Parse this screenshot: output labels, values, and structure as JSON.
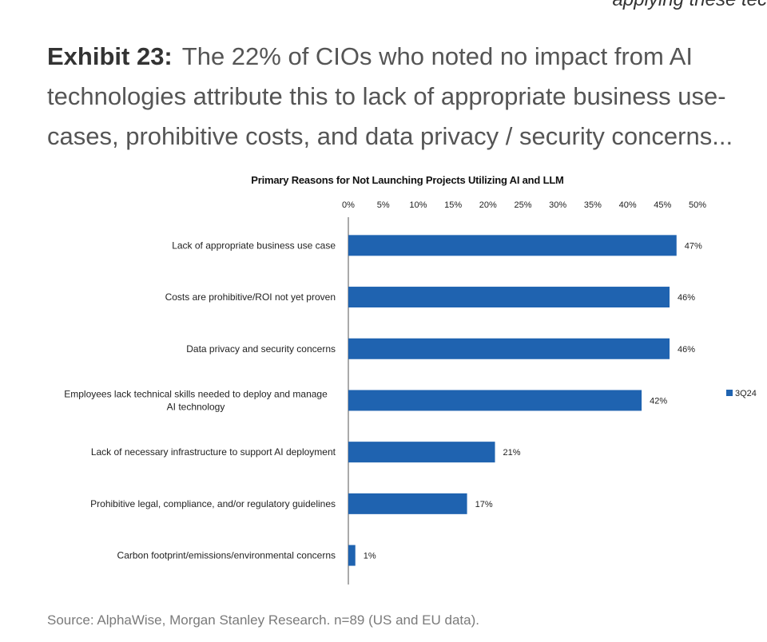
{
  "page": {
    "top_snippet": "applying these tec",
    "exhibit_label": "Exhibit 23:",
    "exhibit_title": "The 22% of CIOs who noted no impact from AI technologies attribute this to lack of appropriate business use-cases, prohibitive costs, and data privacy / security concerns...",
    "source": "Source: AlphaWise, Morgan Stanley Research. n=89 (US and EU data)."
  },
  "colors": {
    "bar": "#1f63b0",
    "axis": "#555555",
    "text": "#222222"
  },
  "chart_data": {
    "type": "bar",
    "orientation": "horizontal",
    "title": "Primary Reasons for Not Launching Projects Utilizing AI and LLM",
    "xlim": [
      0,
      50
    ],
    "xticks": [
      0,
      5,
      10,
      15,
      20,
      25,
      30,
      35,
      40,
      45,
      50
    ],
    "xtick_labels": [
      "0%",
      "5%",
      "10%",
      "15%",
      "20%",
      "25%",
      "30%",
      "35%",
      "40%",
      "45%",
      "50%"
    ],
    "x_axis_position": "top",
    "grid": false,
    "legend_position": "right",
    "categories": [
      "Lack of appropriate business use case",
      "Costs are prohibitive/ROI not yet proven",
      "Data privacy and security concerns",
      "Employees lack technical skills needed to deploy and manage AI technology",
      "Lack of necessary infrastructure to support AI deployment",
      "Prohibitive legal, compliance, and/or regulatory guidelines",
      "Carbon footprint/emissions/environmental concerns"
    ],
    "series": [
      {
        "name": "3Q24",
        "values": [
          47,
          46,
          46,
          42,
          21,
          17,
          1
        ],
        "data_labels": [
          "47%",
          "46%",
          "46%",
          "42%",
          "21%",
          "17%",
          "1%"
        ]
      }
    ]
  }
}
